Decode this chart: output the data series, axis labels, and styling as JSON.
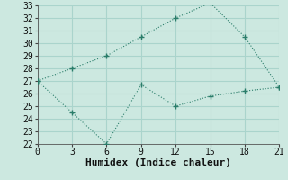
{
  "xlabel": "Humidex (Indice chaleur)",
  "line1_x": [
    0,
    3,
    6,
    9,
    12,
    15,
    18,
    21
  ],
  "line1_y": [
    27,
    28.0,
    29.0,
    30.5,
    32.0,
    33.2,
    30.5,
    26.5
  ],
  "line2_x": [
    0,
    3,
    6,
    9,
    12,
    15,
    18,
    21
  ],
  "line2_y": [
    27,
    24.5,
    22.0,
    26.7,
    25.0,
    25.8,
    26.2,
    26.5
  ],
  "line_color": "#2a7d6a",
  "bg_color": "#cce8e0",
  "plot_bg": "#cce8e0",
  "grid_color": "#aad4cc",
  "ylim_min": 22,
  "ylim_max": 33,
  "yticks": [
    22,
    23,
    24,
    25,
    26,
    27,
    28,
    29,
    30,
    31,
    32,
    33
  ],
  "xticks": [
    0,
    3,
    6,
    9,
    12,
    15,
    18,
    21
  ],
  "xlabel_fontsize": 8,
  "tick_fontsize": 7
}
